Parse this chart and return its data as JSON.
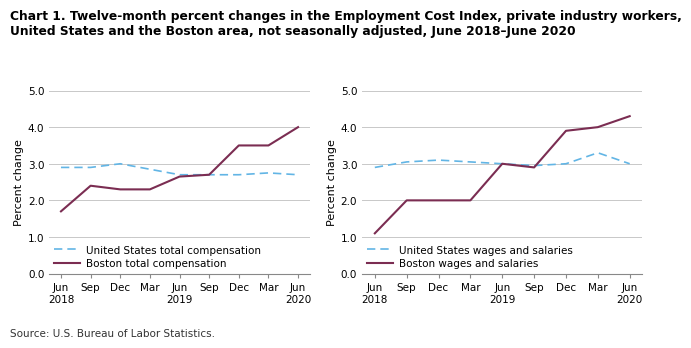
{
  "title_line1": "Chart 1. Twelve-month percent changes in the Employment Cost Index, private industry workers,",
  "title_line2": "United States and the Boston area, not seasonally adjusted, June 2018–June 2020",
  "source": "Source: U.S. Bureau of Labor Statistics.",
  "ylabel": "Percent change",
  "xlabels": [
    "Jun\n2018",
    "Sep",
    "Dec",
    "Mar",
    "Jun\n2019",
    "Sep",
    "Dec",
    "Mar",
    "Jun\n2020"
  ],
  "xtick_positions": [
    0,
    1,
    2,
    3,
    4,
    5,
    6,
    7,
    8
  ],
  "ylim": [
    0.0,
    5.0
  ],
  "yticks": [
    0.0,
    1.0,
    2.0,
    3.0,
    4.0,
    5.0
  ],
  "left_us": [
    2.9,
    2.9,
    3.0,
    2.85,
    2.7,
    2.7,
    2.7,
    2.75,
    2.7
  ],
  "left_boston": [
    1.7,
    2.4,
    2.3,
    2.3,
    2.65,
    2.7,
    3.5,
    3.5,
    4.0
  ],
  "right_us": [
    2.9,
    3.05,
    3.1,
    3.05,
    3.0,
    2.95,
    3.0,
    3.3,
    3.0
  ],
  "right_boston": [
    1.1,
    2.0,
    2.0,
    2.0,
    3.0,
    2.9,
    3.9,
    4.0,
    4.3
  ],
  "us_color": "#62b5e5",
  "boston_color": "#7b2d52",
  "grid_color": "#c8c8c8",
  "background_color": "#ffffff",
  "title_fontsize": 8.8,
  "axis_label_fontsize": 8,
  "tick_fontsize": 7.5,
  "legend_fontsize": 7.5,
  "source_fontsize": 7.5,
  "legend1_us": "United States total compensation",
  "legend1_boston": "Boston total compensation",
  "legend2_us": "United States wages and salaries",
  "legend2_boston": "Boston wages and salaries"
}
